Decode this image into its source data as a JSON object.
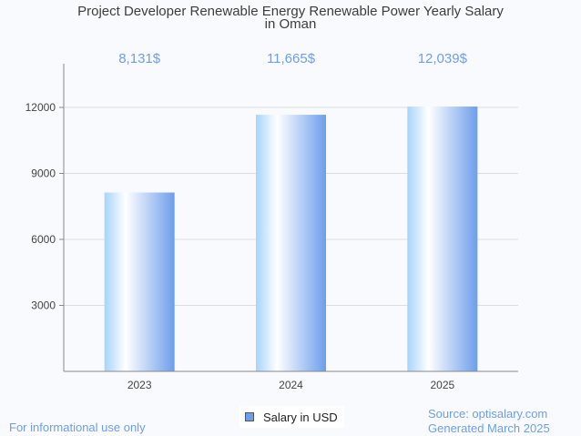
{
  "chart_data": {
    "type": "bar",
    "title": "Project Developer Renewable Energy Renewable Power Yearly Salary in Oman",
    "title_lines": [
      "Project Developer Renewable Energy Renewable Power Yearly Salary",
      "in Oman"
    ],
    "categories": [
      "2023",
      "2024",
      "2025"
    ],
    "series": [
      {
        "name": "Salary in USD",
        "values": [
          8131,
          11665,
          12039
        ]
      }
    ],
    "data_labels": [
      "8,131$",
      "11,665$",
      "12,039$"
    ],
    "xlabel": "",
    "ylabel": "",
    "ylim": [
      0,
      13000
    ],
    "yticks": [
      3000,
      6000,
      9000,
      12000
    ],
    "ytick_labels": [
      "3000",
      "6000",
      "9000",
      "12000"
    ],
    "grid": true,
    "legend": "bottom-center",
    "colors": {
      "bar_start": "#a6d4fa",
      "bar_mid": "#ffffff",
      "bar_end": "#6d9eeb",
      "label": "#6d9eeb"
    }
  },
  "footer": {
    "disclaimer": "For informational use only",
    "source": "Source: optisalary.com",
    "generated": "Generated March 2025"
  }
}
